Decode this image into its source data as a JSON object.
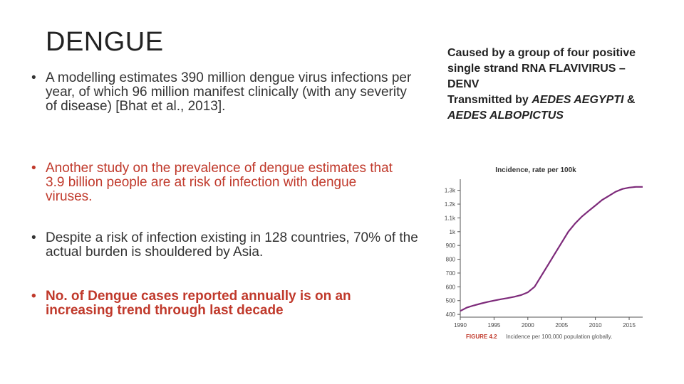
{
  "slide": {
    "title": "DENGUE",
    "bullets": [
      "A modelling estimates 390 million dengue virus infections per year, of which 96 million manifest clinically (with any severity of disease) [Bhat et al., 2013].",
      " Another study on the prevalence of dengue estimates that 3.9 billion people are at risk of infection with dengue viruses.",
      "Despite a risk of infection existing in 128 countries, 70% of the actual burden is shouldered by Asia.",
      "No. of Dengue cases reported annually is on an increasing trend through last decade"
    ],
    "side": {
      "line1": "Caused by a group of four positive",
      "line2": "single strand RNA FLAVIVIRUS –",
      "line3": "DENV",
      "line4_prefix": "Transmitted by ",
      "line4_italic": "AEDES AEGYPTI",
      "line4_suffix": " &",
      "line5_italic": "AEDES ALBOPICTUS"
    },
    "colors": {
      "accent_red": "#c0392b",
      "line": "#7d2a7a"
    }
  },
  "chart_data": {
    "type": "line",
    "title": "Incidence, rate per 100k",
    "caption_label": "FIGURE 4.2",
    "caption_text": "Incidence per 100,000 population globally.",
    "x_ticks": [
      "1990",
      "1995",
      "2000",
      "2005",
      "2010",
      "2015"
    ],
    "y_ticks": [
      "400",
      "500",
      "600",
      "700",
      "800",
      "900",
      "1k",
      "1.1k",
      "1.2k",
      "1.3k"
    ],
    "xlim": [
      1990,
      2017
    ],
    "ylim": [
      380,
      1360
    ],
    "series": [
      {
        "x": [
          1990,
          1991,
          1992,
          1993,
          1994,
          1995,
          1996,
          1997,
          1998,
          1999,
          2000,
          2001,
          2002,
          2003,
          2004,
          2005,
          2006,
          2007,
          2008,
          2009,
          2010,
          2011,
          2012,
          2013,
          2014,
          2015,
          2016,
          2017
        ],
        "values": [
          425,
          450,
          465,
          478,
          490,
          500,
          510,
          518,
          528,
          540,
          560,
          600,
          680,
          760,
          840,
          920,
          1000,
          1060,
          1110,
          1150,
          1190,
          1230,
          1260,
          1290,
          1310,
          1320,
          1325,
          1325
        ]
      }
    ]
  }
}
